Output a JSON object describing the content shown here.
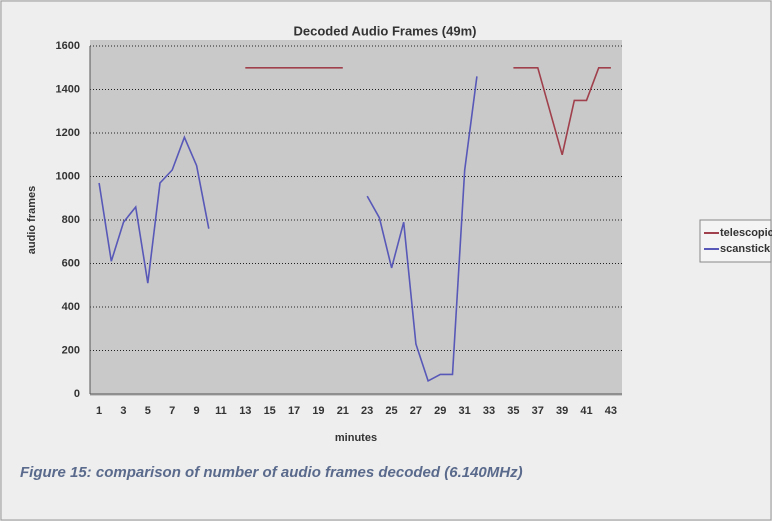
{
  "chart_data": {
    "type": "line",
    "title": "Decoded Audio Frames (49m)",
    "x_label": "minutes",
    "y_label": "audio frames",
    "categories": [
      1,
      null,
      3,
      null,
      5,
      null,
      7,
      null,
      9,
      null,
      11,
      null,
      13,
      null,
      15,
      null,
      17,
      null,
      19,
      null,
      21,
      null,
      23,
      null,
      25,
      null,
      27,
      null,
      29,
      null,
      31,
      null,
      33,
      null,
      35,
      null,
      37,
      null,
      39,
      null,
      41,
      null,
      43
    ],
    "series": [
      {
        "name": "telescopic",
        "color": "#a0404c",
        "values": [
          null,
          null,
          null,
          null,
          null,
          null,
          null,
          null,
          null,
          null,
          null,
          null,
          1500,
          1500,
          1500,
          1500,
          1500,
          1500,
          1500,
          1500,
          1500,
          null,
          null,
          null,
          null,
          null,
          null,
          null,
          null,
          null,
          null,
          null,
          null,
          null,
          1500,
          1500,
          1500,
          1300,
          1100,
          1350,
          1350,
          1500,
          1500
        ]
      },
      {
        "name": "scanstick",
        "color": "#5858b8",
        "values": [
          970,
          610,
          790,
          860,
          510,
          970,
          1030,
          1180,
          1050,
          760,
          null,
          null,
          null,
          null,
          null,
          null,
          null,
          null,
          null,
          null,
          null,
          null,
          910,
          810,
          580,
          790,
          230,
          60,
          90,
          90,
          1030,
          1460,
          null,
          null,
          null,
          null,
          null,
          null,
          null,
          null,
          null,
          null,
          null
        ]
      }
    ],
    "ylim": [
      0,
      1600
    ],
    "yticks": [
      0,
      200,
      400,
      600,
      800,
      1000,
      1200,
      1400,
      1600
    ],
    "grid": true,
    "legend": "right",
    "caption": "Figure 15: comparison of number of audio frames decoded (6.140MHz)"
  }
}
